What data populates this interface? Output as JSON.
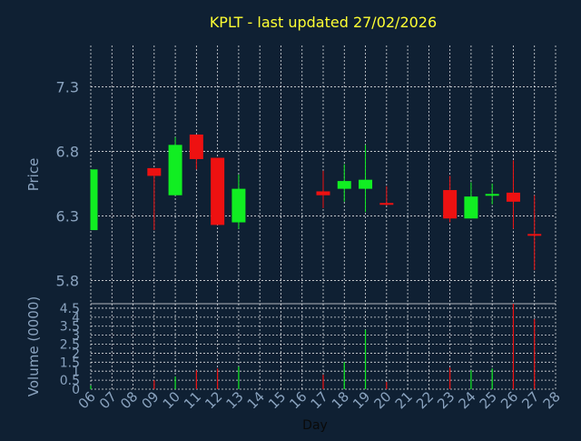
{
  "colors": {
    "background": "#0f2033",
    "title": "#ffff33",
    "axis_text": "#8aa3bf",
    "grid": "#ffffff",
    "up": "#11ee22",
    "down": "#ee1111"
  },
  "chart_data": [
    {
      "type": "candlestick",
      "title": "KPLT - last updated 27/02/2026",
      "ylabel": "Price",
      "ylim": [
        5.62,
        7.62
      ],
      "yticks": [
        5.8,
        6.3,
        6.8,
        7.3
      ],
      "ytick_labels": [
        "5.8",
        "6.3",
        "6.8",
        "7.3"
      ],
      "grid": true,
      "candles": [
        {
          "day": "06",
          "open": 6.19,
          "close": 6.66,
          "high": 6.66,
          "low": 6.19
        },
        {
          "day": "09",
          "open": 6.67,
          "close": 6.61,
          "high": 6.67,
          "low": 6.19
        },
        {
          "day": "10",
          "open": 6.46,
          "close": 6.85,
          "high": 6.91,
          "low": 6.46
        },
        {
          "day": "11",
          "open": 6.93,
          "close": 6.74,
          "high": 6.93,
          "low": 6.66
        },
        {
          "day": "12",
          "open": 6.75,
          "close": 6.23,
          "high": 6.75,
          "low": 6.23
        },
        {
          "day": "13",
          "open": 6.25,
          "close": 6.51,
          "high": 6.62,
          "low": 6.2
        },
        {
          "day": "17",
          "open": 6.49,
          "close": 6.46,
          "high": 6.65,
          "low": 6.36
        },
        {
          "day": "18",
          "open": 6.51,
          "close": 6.57,
          "high": 6.7,
          "low": 6.41
        },
        {
          "day": "19",
          "open": 6.51,
          "close": 6.58,
          "high": 6.85,
          "low": 6.33
        },
        {
          "day": "20",
          "open": 6.4,
          "close": 6.39,
          "high": 6.53,
          "low": 6.38
        },
        {
          "day": "23",
          "open": 6.5,
          "close": 6.28,
          "high": 6.61,
          "low": 6.25
        },
        {
          "day": "24",
          "open": 6.28,
          "close": 6.45,
          "high": 6.56,
          "low": 6.28
        },
        {
          "day": "25",
          "open": 6.46,
          "close": 6.47,
          "high": 6.55,
          "low": 6.39
        },
        {
          "day": "26",
          "open": 6.48,
          "close": 6.41,
          "high": 6.73,
          "low": 6.2
        },
        {
          "day": "27",
          "open": 6.16,
          "close": 6.15,
          "high": 6.46,
          "low": 5.88
        }
      ]
    },
    {
      "type": "bar",
      "ylabel": "Volume (0000)",
      "xlabel": "Day",
      "ylim": [
        0,
        4.75
      ],
      "yticks": [
        0,
        0.5,
        1,
        1.5,
        2,
        2.5,
        3,
        3.5,
        4,
        4.5
      ],
      "ytick_labels": [
        "0",
        "0.5",
        "1",
        "1.5",
        "2",
        "2.5",
        "3",
        "3.5",
        "4",
        "4.5"
      ],
      "categories": [
        "06",
        "07",
        "08",
        "09",
        "10",
        "11",
        "12",
        "13",
        "14",
        "15",
        "16",
        "17",
        "18",
        "19",
        "20",
        "21",
        "22",
        "23",
        "24",
        "25",
        "26",
        "27",
        "28"
      ],
      "values": [
        {
          "day": "06",
          "value": 0.2,
          "direction": "up"
        },
        {
          "day": "09",
          "value": 0.5,
          "direction": "down"
        },
        {
          "day": "10",
          "value": 0.7,
          "direction": "up"
        },
        {
          "day": "11",
          "value": 1.05,
          "direction": "down"
        },
        {
          "day": "12",
          "value": 1.15,
          "direction": "down"
        },
        {
          "day": "13",
          "value": 1.25,
          "direction": "up"
        },
        {
          "day": "17",
          "value": 0.8,
          "direction": "down"
        },
        {
          "day": "18",
          "value": 1.5,
          "direction": "up"
        },
        {
          "day": "19",
          "value": 3.3,
          "direction": "up"
        },
        {
          "day": "20",
          "value": 0.4,
          "direction": "down"
        },
        {
          "day": "23",
          "value": 1.2,
          "direction": "down"
        },
        {
          "day": "24",
          "value": 1.05,
          "direction": "up"
        },
        {
          "day": "25",
          "value": 1.15,
          "direction": "up"
        },
        {
          "day": "26",
          "value": 4.75,
          "direction": "down"
        },
        {
          "day": "27",
          "value": 3.9,
          "direction": "down"
        }
      ]
    }
  ]
}
